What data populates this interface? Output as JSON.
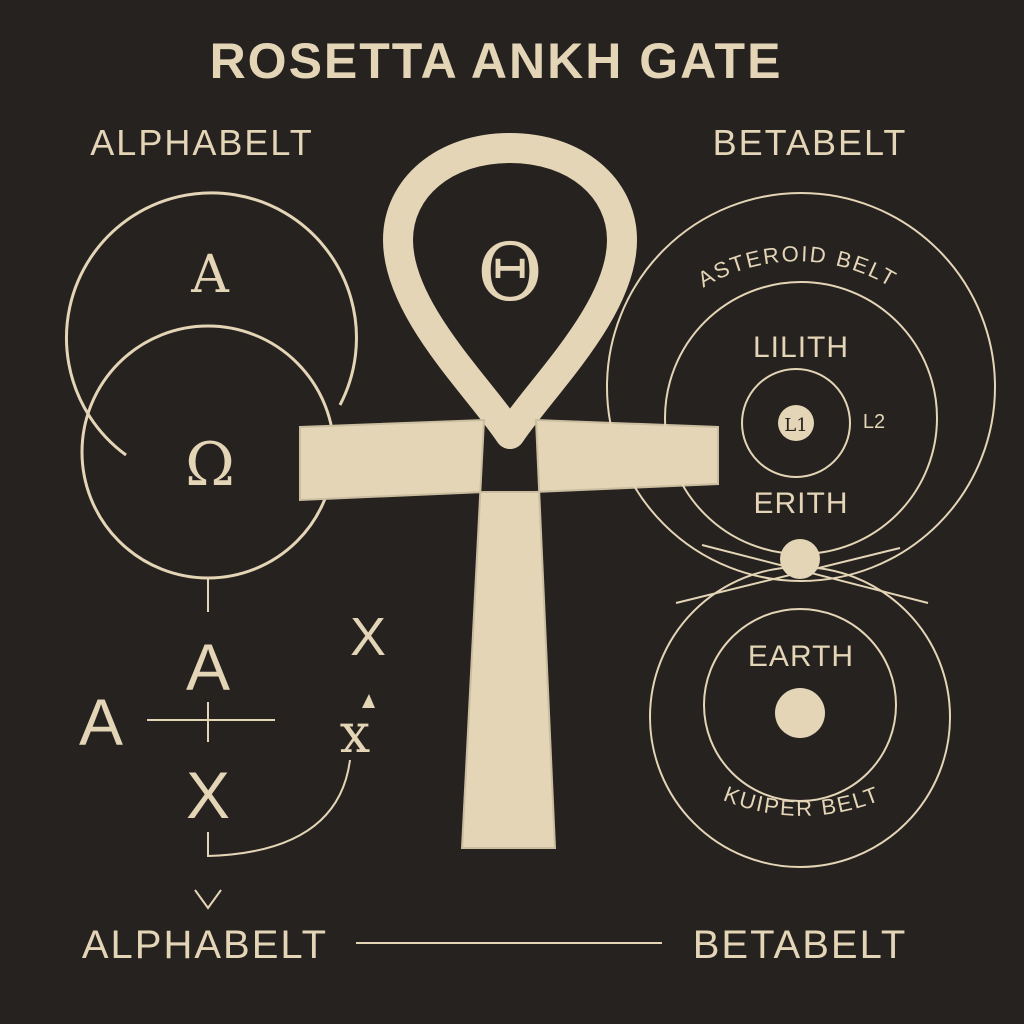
{
  "title": "ROSETTA  ANKH GATE",
  "colors": {
    "background": "#26221f",
    "ink": "#e4d5b7"
  },
  "icons": {
    "central": "ankh-icon"
  },
  "left": {
    "heading": "ALPHABELT",
    "upper_circle_letter": "A",
    "lower_circle_letter": "Ω",
    "cross_top": "A",
    "cross_left": "A",
    "cross_bottom": "X",
    "upper_right_letter": "X",
    "lower_right_letter": "x"
  },
  "ankh": {
    "loop_letter": "Θ"
  },
  "right": {
    "heading": "BETABELT",
    "asteroid_belt": "ASTEROID BELT",
    "lilith": "LILITH",
    "l1": "L1",
    "l2": "L2",
    "erith": "ERITH",
    "earth": "EARTH",
    "kuiper_belt": "KUIPER BELT"
  },
  "footer": {
    "left": "ALPHABELT",
    "right": "BETABELT"
  }
}
